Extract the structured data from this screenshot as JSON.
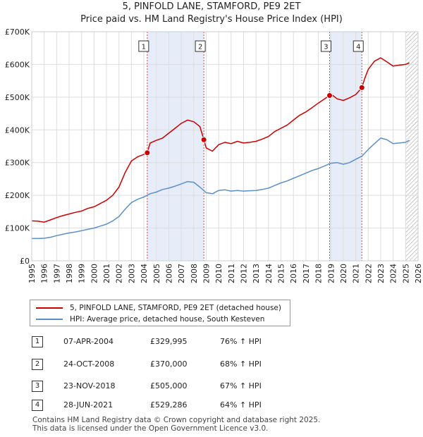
{
  "title_line1": "5, PINFOLD LANE, STAMFORD, PE9 2ET",
  "title_line2": "Price paid vs. HM Land Registry's House Price Index (HPI)",
  "chart_data": {
    "type": "line",
    "title": "5, PINFOLD LANE, STAMFORD, PE9 2ET",
    "subtitle": "Price paid vs. HM Land Registry's House Price Index (HPI)",
    "xlim": [
      1995,
      2026
    ],
    "ylim": [
      0,
      700000
    ],
    "x_ticks": [
      1995,
      1996,
      1997,
      1998,
      1999,
      2000,
      2001,
      2002,
      2003,
      2004,
      2005,
      2006,
      2007,
      2008,
      2009,
      2010,
      2011,
      2012,
      2013,
      2014,
      2015,
      2016,
      2017,
      2018,
      2019,
      2020,
      2021,
      2022,
      2023,
      2024,
      2025,
      2026
    ],
    "y_ticks": [
      0,
      100000,
      200000,
      300000,
      400000,
      500000,
      600000,
      700000
    ],
    "y_tick_labels": [
      "£0",
      "£100K",
      "£200K",
      "£300K",
      "£400K",
      "£500K",
      "£600K",
      "£700K"
    ],
    "grid": true,
    "shaded_periods": [
      [
        2004.27,
        2008.81
      ],
      [
        2018.9,
        2021.49
      ]
    ],
    "hatched_from": 2025.0,
    "series": [
      {
        "name": "5, PINFOLD LANE, STAMFORD, PE9 2ET (detached house)",
        "color": "#cc0000",
        "x": [
          1995.0,
          1995.5,
          1996.0,
          1996.5,
          1997.0,
          1997.5,
          1998.0,
          1998.5,
          1999.0,
          1999.5,
          2000.0,
          2000.5,
          2001.0,
          2001.5,
          2002.0,
          2002.5,
          2003.0,
          2003.5,
          2004.0,
          2004.27,
          2004.5,
          2005.0,
          2005.5,
          2006.0,
          2006.5,
          2007.0,
          2007.5,
          2008.0,
          2008.5,
          2008.81,
          2009.0,
          2009.5,
          2010.0,
          2010.5,
          2011.0,
          2011.5,
          2012.0,
          2012.5,
          2013.0,
          2013.5,
          2014.0,
          2014.5,
          2015.0,
          2015.5,
          2016.0,
          2016.5,
          2017.0,
          2017.5,
          2018.0,
          2018.5,
          2018.9,
          2019.0,
          2019.5,
          2020.0,
          2020.5,
          2021.0,
          2021.49,
          2021.7,
          2022.0,
          2022.5,
          2023.0,
          2023.5,
          2024.0,
          2024.5,
          2025.0,
          2025.3
        ],
        "values": [
          122000,
          121000,
          118000,
          125000,
          132000,
          138000,
          143000,
          148000,
          152000,
          160000,
          165000,
          175000,
          185000,
          200000,
          225000,
          270000,
          305000,
          318000,
          325000,
          329995,
          360000,
          368000,
          375000,
          390000,
          405000,
          420000,
          430000,
          425000,
          410000,
          370000,
          345000,
          335000,
          355000,
          362000,
          358000,
          365000,
          360000,
          362000,
          365000,
          372000,
          380000,
          395000,
          405000,
          415000,
          430000,
          445000,
          455000,
          468000,
          482000,
          495000,
          505000,
          510000,
          495000,
          490000,
          498000,
          508000,
          529286,
          555000,
          585000,
          610000,
          620000,
          608000,
          595000,
          598000,
          600000,
          605000
        ]
      },
      {
        "name": "HPI: Average price, detached house, South Kesteven",
        "color": "#5b8fc9",
        "x": [
          1995.0,
          1995.5,
          1996.0,
          1996.5,
          1997.0,
          1997.5,
          1998.0,
          1998.5,
          1999.0,
          1999.5,
          2000.0,
          2000.5,
          2001.0,
          2001.5,
          2002.0,
          2002.5,
          2003.0,
          2003.5,
          2004.0,
          2004.5,
          2005.0,
          2005.5,
          2006.0,
          2006.5,
          2007.0,
          2007.5,
          2008.0,
          2008.5,
          2009.0,
          2009.5,
          2010.0,
          2010.5,
          2011.0,
          2011.5,
          2012.0,
          2012.5,
          2013.0,
          2013.5,
          2014.0,
          2014.5,
          2015.0,
          2015.5,
          2016.0,
          2016.5,
          2017.0,
          2017.5,
          2018.0,
          2018.5,
          2019.0,
          2019.5,
          2020.0,
          2020.5,
          2021.0,
          2021.5,
          2022.0,
          2022.5,
          2023.0,
          2023.5,
          2024.0,
          2024.5,
          2025.0,
          2025.3
        ],
        "values": [
          68000,
          68000,
          69000,
          72000,
          77000,
          81000,
          85000,
          88000,
          92000,
          96000,
          100000,
          106000,
          112000,
          122000,
          135000,
          158000,
          178000,
          188000,
          195000,
          205000,
          210000,
          218000,
          222000,
          228000,
          235000,
          242000,
          240000,
          225000,
          208000,
          205000,
          215000,
          217000,
          213000,
          215000,
          213000,
          214000,
          215000,
          218000,
          222000,
          230000,
          238000,
          244000,
          252000,
          260000,
          268000,
          276000,
          282000,
          290000,
          298000,
          300000,
          295000,
          300000,
          310000,
          320000,
          340000,
          358000,
          375000,
          370000,
          358000,
          360000,
          362000,
          368000
        ]
      }
    ],
    "sales": [
      {
        "label": "1",
        "x": 2004.27,
        "value": 329995
      },
      {
        "label": "2",
        "x": 2008.81,
        "value": 370000
      },
      {
        "label": "3",
        "x": 2018.9,
        "value": 505000
      },
      {
        "label": "4",
        "x": 2021.49,
        "value": 529286
      }
    ]
  },
  "legend": {
    "property_label": "5, PINFOLD LANE, STAMFORD, PE9 2ET (detached house)",
    "hpi_label": "HPI: Average price, detached house, South Kesteven",
    "property_color": "#cc0000",
    "hpi_color": "#5b8fc9"
  },
  "transactions": [
    {
      "num": "1",
      "date": "07-APR-2004",
      "price": "£329,995",
      "pct": "76% ↑ HPI"
    },
    {
      "num": "2",
      "date": "24-OCT-2008",
      "price": "£370,000",
      "pct": "68% ↑ HPI"
    },
    {
      "num": "3",
      "date": "23-NOV-2018",
      "price": "£505,000",
      "pct": "67% ↑ HPI"
    },
    {
      "num": "4",
      "date": "28-JUN-2021",
      "price": "£529,286",
      "pct": "64% ↑ HPI"
    }
  ],
  "footer_line1": "Contains HM Land Registry data © Crown copyright and database right 2025.",
  "footer_line2": "This data is licensed under the Open Government Licence v3.0."
}
